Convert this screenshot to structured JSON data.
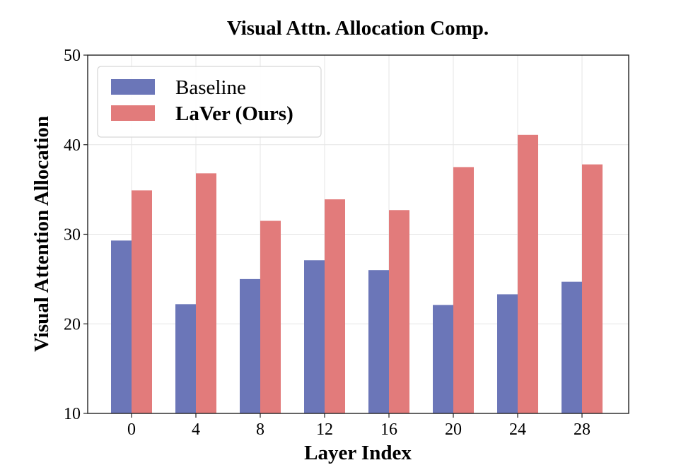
{
  "chart_data": {
    "type": "bar",
    "title": "Visual Attn. Allocation Comp.",
    "xlabel": "Layer Index",
    "ylabel": "Visual Attention Allocation",
    "categories": [
      "0",
      "4",
      "8",
      "12",
      "16",
      "20",
      "24",
      "28"
    ],
    "series": [
      {
        "name": "Baseline",
        "color": "#6b76b8",
        "values": [
          29.3,
          22.2,
          25.0,
          27.1,
          26.0,
          22.1,
          23.3,
          24.7
        ]
      },
      {
        "name": "LaVer (Ours)",
        "color": "#e27b7b",
        "values": [
          34.9,
          36.8,
          31.5,
          33.9,
          32.7,
          37.5,
          41.1,
          37.8
        ]
      }
    ],
    "ylim": [
      10,
      50
    ],
    "yticks": [
      10,
      20,
      30,
      40,
      50
    ],
    "grid": true,
    "legend_position": "top-left"
  }
}
